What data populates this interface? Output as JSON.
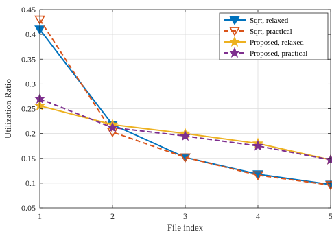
{
  "chart_data": {
    "type": "line",
    "xlabel": "File index",
    "ylabel": "Utilization Ratio",
    "x": [
      1,
      2,
      3,
      4,
      5
    ],
    "xlim": [
      1,
      5
    ],
    "ylim": [
      0.05,
      0.45
    ],
    "xticks": [
      "1",
      "2",
      "3",
      "4",
      "5"
    ],
    "yticks": [
      "0.05",
      "0.1",
      "0.15",
      "0.2",
      "0.25",
      "0.3",
      "0.35",
      "0.4",
      "0.45"
    ],
    "grid": true,
    "legend_position": "top-right",
    "series": [
      {
        "name": "Sqrt, relaxed",
        "values": [
          0.41,
          0.218,
          0.152,
          0.118,
          0.097
        ],
        "color": "#0072BD",
        "line": "solid",
        "marker": "triangle-down-filled"
      },
      {
        "name": "Sqrt, practical",
        "values": [
          0.43,
          0.203,
          0.152,
          0.116,
          0.096
        ],
        "color": "#D95319",
        "line": "dashed",
        "marker": "triangle-down-open"
      },
      {
        "name": "Proposed, relaxed",
        "values": [
          0.256,
          0.218,
          0.2,
          0.18,
          0.147
        ],
        "color": "#EDB120",
        "line": "solid",
        "marker": "star"
      },
      {
        "name": "Proposed, practical",
        "values": [
          0.27,
          0.212,
          0.195,
          0.175,
          0.147
        ],
        "color": "#7E2F8E",
        "line": "dashed",
        "marker": "star"
      }
    ]
  }
}
